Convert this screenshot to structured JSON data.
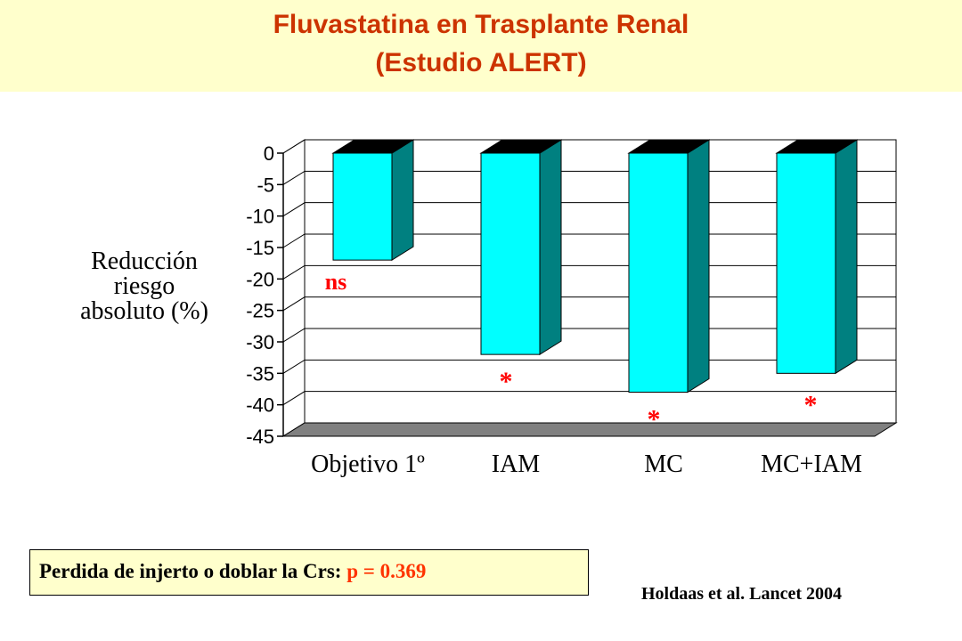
{
  "header": {
    "title_line1": "Fluvastatina en Trasplante Renal",
    "title_line2": "(Estudio ALERT)",
    "title_color": "#cc3300",
    "background": "#ffffcc"
  },
  "chart_data": {
    "type": "bar",
    "style": "3d",
    "categories": [
      "Objetivo 1º",
      "IAM",
      "MC",
      "MC+IAM"
    ],
    "values": [
      -17,
      -32,
      -38,
      -35
    ],
    "value_labels": [
      "ns",
      "*",
      "*",
      "*"
    ],
    "ylabel_lines": [
      "Reducción",
      "riesgo",
      "absoluto (%)"
    ],
    "ylim": [
      -45,
      0
    ],
    "yticks": [
      0,
      -5,
      -10,
      -15,
      -20,
      -25,
      -30,
      -35,
      -40,
      -45
    ],
    "grid": true,
    "legend": "none",
    "colors": {
      "front": "#00ffff",
      "side": "#008080",
      "top": "#000000",
      "floor": "#808080",
      "label": "#ff0000"
    }
  },
  "note": {
    "label": "Perdida de injerto o doblar la Crs:",
    "value": "p = 0.369",
    "value_color": "#ff3300"
  },
  "citation": "Holdaas et al. Lancet 2004"
}
